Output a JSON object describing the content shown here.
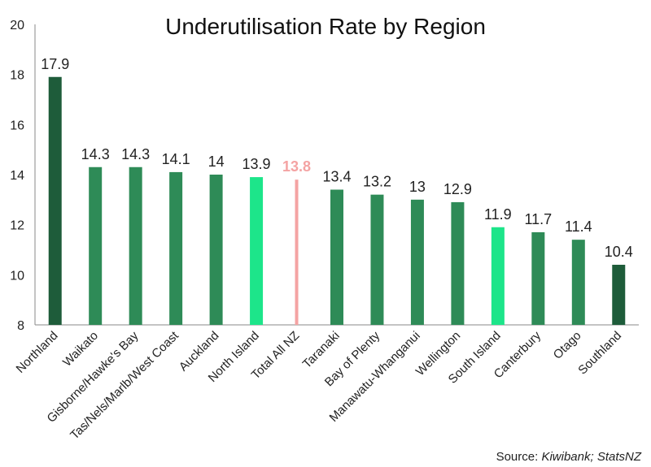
{
  "chart_data": {
    "type": "bar",
    "title": "Underutilisation Rate by Region",
    "categories": [
      "Northland",
      "Waikato",
      "Gisborne/Hawke's Bay",
      "Tas/Nels/Marlb/West Coast",
      "Auckland",
      "North Island",
      "Total All NZ",
      "Taranaki",
      "Bay of Plenty",
      "Manawatu-Whanganui",
      "Wellington",
      "South Island",
      "Canterbury",
      "Otago",
      "Southland"
    ],
    "values": [
      17.9,
      14.3,
      14.3,
      14.1,
      14,
      13.9,
      13.8,
      13.4,
      13.2,
      13,
      12.9,
      11.9,
      11.7,
      11.4,
      10.4
    ],
    "value_labels": [
      "17.9",
      "14.3",
      "14.3",
      "14.1",
      "14",
      "13.9",
      "13.8",
      "13.4",
      "13.2",
      "13",
      "12.9",
      "11.9",
      "11.7",
      "11.4",
      "10.4"
    ],
    "colors": [
      "#1e5c3a",
      "#2e8b57",
      "#2e8b57",
      "#2e8b57",
      "#2e8b57",
      "#1de58a",
      "#f4a3a3",
      "#2e8b57",
      "#2e8b57",
      "#2e8b57",
      "#2e8b57",
      "#1de58a",
      "#2e8b57",
      "#2e8b57",
      "#1e5c3a"
    ],
    "highlight_label": "13.8",
    "ylim": [
      8,
      20
    ],
    "yticks": [
      8,
      10,
      12,
      14,
      16,
      18,
      20
    ],
    "grid": false,
    "legend": "none"
  },
  "source": {
    "prefix": "Source: ",
    "names": "Kiwibank; StatsNZ"
  }
}
